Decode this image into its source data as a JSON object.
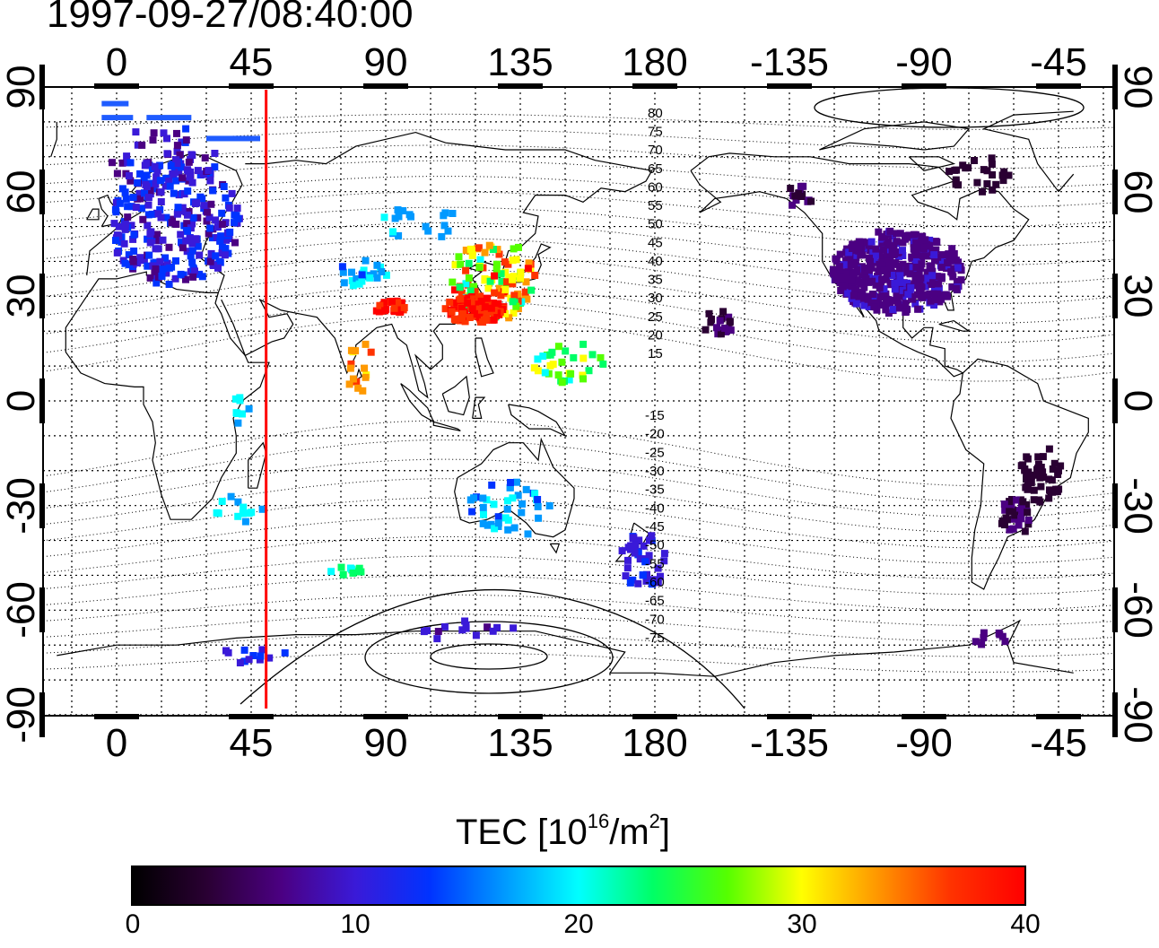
{
  "timestamp": "1997-09-27/08:40:00",
  "map": {
    "top_lon_ticks": [
      "0",
      "45",
      "90",
      "135",
      "180",
      "-135",
      "-90",
      "-45"
    ],
    "bottom_lon_ticks": [
      "0",
      "45",
      "90",
      "135",
      "180",
      "-135",
      "-90",
      "-45"
    ],
    "left_lat_ticks": [
      "90",
      "60",
      "30",
      "0",
      "-30",
      "-60",
      "-90"
    ],
    "right_lat_ticks": [
      "90",
      "60",
      "30",
      "0",
      "-30",
      "-60",
      "-90"
    ],
    "contour_labels_north": [
      "80",
      "75",
      "70",
      "65",
      "60",
      "55",
      "50",
      "45",
      "40",
      "35",
      "30",
      "25",
      "20",
      "15"
    ],
    "contour_labels_south": [
      "-15",
      "-20",
      "-25",
      "-30",
      "-35",
      "-40",
      "-45",
      "-50",
      "-55",
      "-60",
      "-65",
      "-70",
      "-75"
    ],
    "marker_line_longitude": 50,
    "marker_line_color": "#ff0000"
  },
  "colorbar": {
    "title_main": "TEC  [10",
    "title_sup1": "16",
    "title_mid": "/m",
    "title_sup2": "2",
    "title_end": "]",
    "ticks": [
      "0",
      "10",
      "20",
      "30",
      "40"
    ],
    "range": [
      0,
      40
    ],
    "colors": [
      "#000000",
      "#2a0033",
      "#4b0082",
      "#3a1ad8",
      "#0033ff",
      "#0099ff",
      "#00ffff",
      "#00ff66",
      "#55ff00",
      "#ffff00",
      "#ff9900",
      "#ff3300",
      "#ff0000"
    ]
  },
  "tec_regions": [
    {
      "name": "europe",
      "value": 11
    },
    {
      "name": "east-asia",
      "value": 36
    },
    {
      "name": "north-america",
      "value": 6
    },
    {
      "name": "south-america",
      "value": 4
    },
    {
      "name": "australia",
      "value": 17
    }
  ]
}
